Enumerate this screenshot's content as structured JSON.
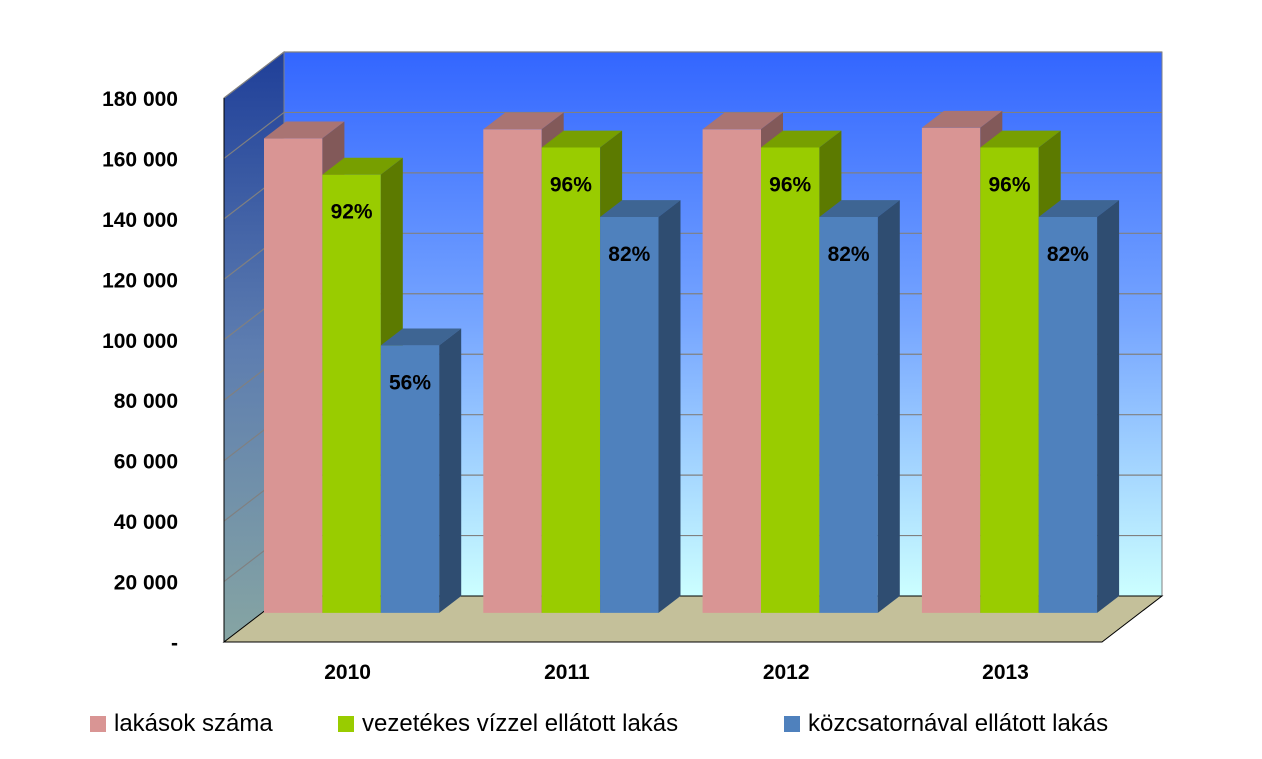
{
  "chart_data": {
    "type": "bar",
    "title": "",
    "xlabel": "",
    "ylabel": "",
    "categories": [
      "2010",
      "2011",
      "2012",
      "2013"
    ],
    "ylim": [
      0,
      180000
    ],
    "yticks": [
      0,
      20000,
      40000,
      60000,
      80000,
      100000,
      120000,
      140000,
      160000,
      180000
    ],
    "ytick_labels": [
      "-",
      "20 000",
      "40 000",
      "60 000",
      "80 000",
      "100 000",
      "120 000",
      "140 000",
      "160 000",
      "180 000"
    ],
    "grid": true,
    "legend_position": "bottom",
    "series": [
      {
        "name": "lakások száma",
        "color": "#D99594",
        "values": [
          157000,
          160000,
          160000,
          160500
        ],
        "labels": [
          "",
          "",
          "",
          ""
        ]
      },
      {
        "name": "vezetékes vízzel ellátott lakás",
        "color": "#99CC00",
        "values": [
          145000,
          154000,
          154000,
          154000
        ],
        "labels": [
          "92%",
          "96%",
          "96%",
          "96%"
        ]
      },
      {
        "name": "közcsatornával ellátott lakás",
        "color": "#4F81BD",
        "values": [
          88500,
          131000,
          131000,
          131000
        ],
        "labels": [
          "56%",
          "82%",
          "82%",
          "82%"
        ]
      }
    ]
  }
}
